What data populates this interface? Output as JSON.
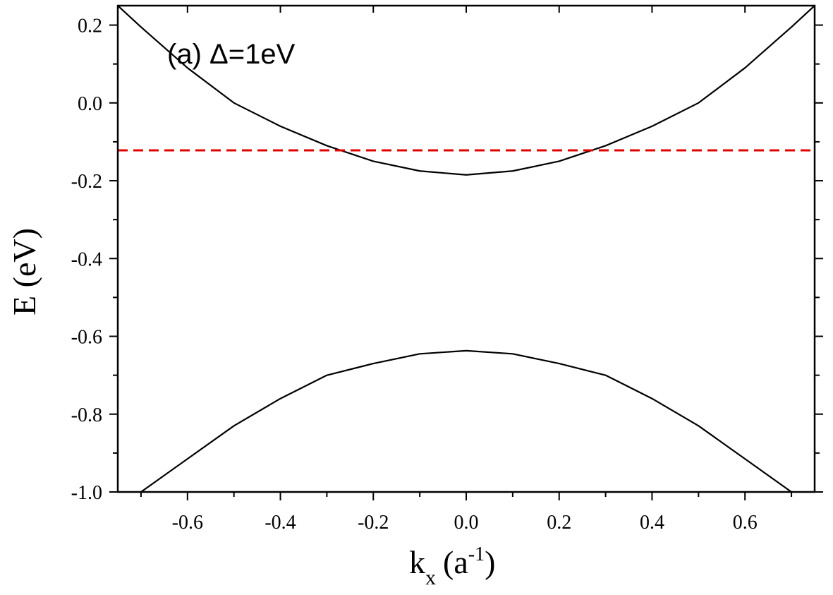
{
  "chart_data": {
    "type": "line",
    "annotation": "(a) Δ=1eV",
    "xlabel": {
      "main": "k",
      "sub": "x",
      "open": "(a",
      "sup": "-1",
      "close": ")"
    },
    "ylabel": "E (eV)",
    "xlim": [
      -0.75,
      0.75
    ],
    "ylim": [
      -1.0,
      0.25
    ],
    "xticks": [
      -0.6,
      -0.4,
      -0.2,
      0.0,
      0.2,
      0.4,
      0.6
    ],
    "xtick_labels": [
      "-0.6",
      "-0.4",
      "-0.2",
      "0.0",
      "0.2",
      "0.4",
      "0.6"
    ],
    "yticks": [
      -1.0,
      -0.8,
      -0.6,
      -0.4,
      -0.2,
      0.0,
      0.2
    ],
    "ytick_labels": [
      "-1.0",
      "-0.8",
      "-0.6",
      "-0.4",
      "-0.2",
      "0.0",
      "0.2"
    ],
    "grid": false,
    "series": [
      {
        "color": "#000000",
        "style": "solid",
        "x": [
          -0.75,
          -0.7,
          -0.6,
          -0.5,
          -0.4,
          -0.3,
          -0.2,
          -0.1,
          0.0,
          0.1,
          0.2,
          0.3,
          0.4,
          0.5,
          0.6,
          0.7,
          0.75
        ],
        "y": [
          0.25,
          0.195,
          0.09,
          0.0,
          -0.06,
          -0.11,
          -0.15,
          -0.175,
          -0.185,
          -0.175,
          -0.15,
          -0.11,
          -0.06,
          0.0,
          0.09,
          0.195,
          0.25
        ]
      },
      {
        "color": "#000000",
        "style": "solid",
        "x": [
          -0.7,
          -0.6,
          -0.5,
          -0.4,
          -0.3,
          -0.2,
          -0.1,
          0.0,
          0.1,
          0.2,
          0.3,
          0.4,
          0.5,
          0.6,
          0.7
        ],
        "y": [
          -1.0,
          -0.915,
          -0.83,
          -0.76,
          -0.7,
          -0.67,
          -0.645,
          -0.637,
          -0.645,
          -0.67,
          -0.7,
          -0.76,
          -0.83,
          -0.915,
          -1.0
        ]
      },
      {
        "color": "#e00000",
        "style": "dashed",
        "x": [
          -0.75,
          0.75
        ],
        "y": [
          -0.122,
          -0.122
        ]
      }
    ]
  }
}
